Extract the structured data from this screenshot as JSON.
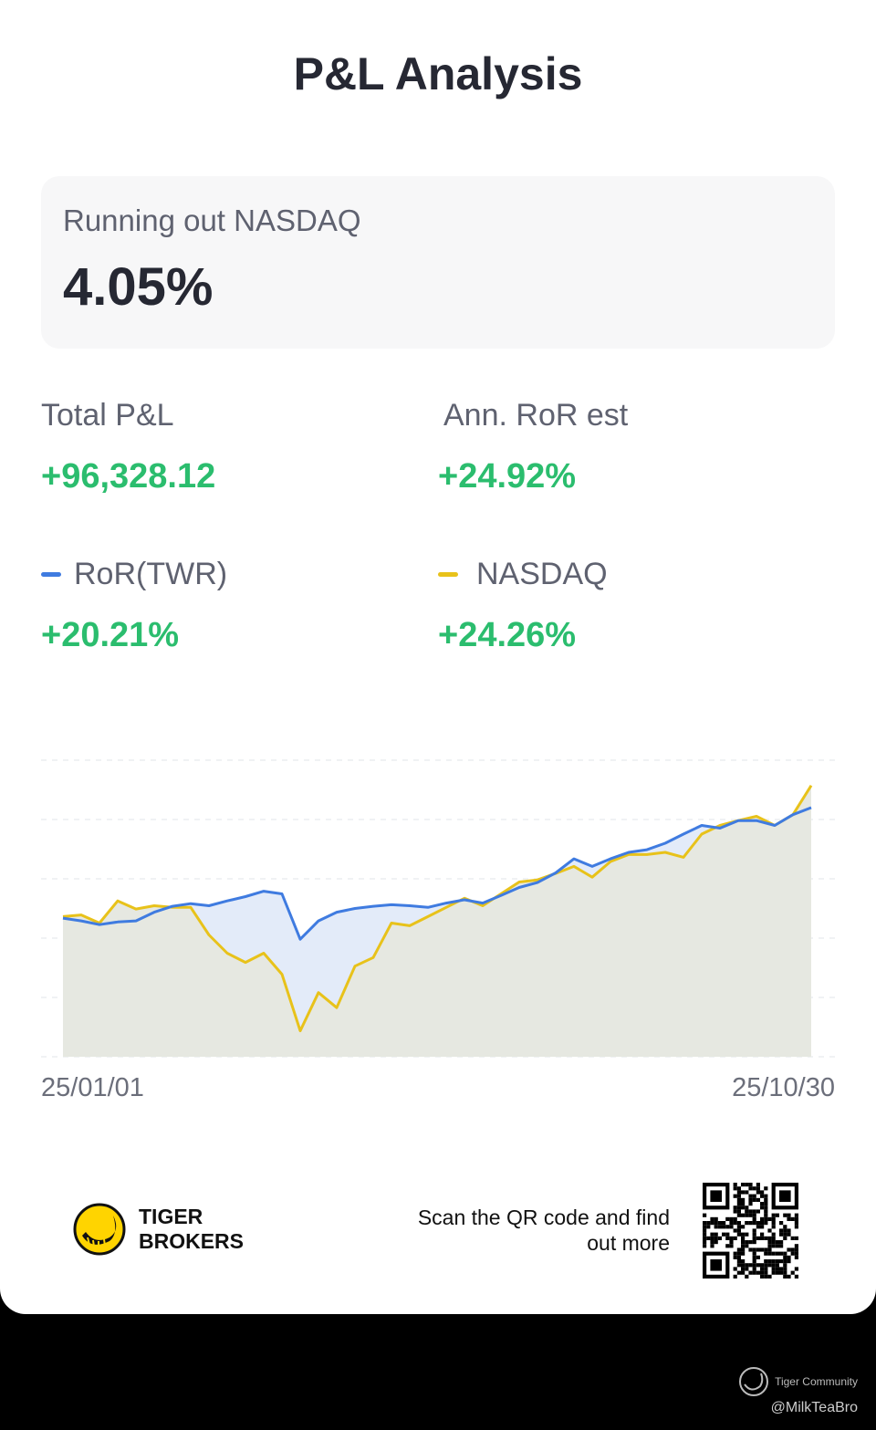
{
  "title": "P&L Analysis",
  "summary": {
    "label": "Running out NASDAQ",
    "value": "4.05%"
  },
  "stats": {
    "total_pl": {
      "label": "Total P&L",
      "value": "+96,328.12"
    },
    "ann_ror": {
      "label": "Ann. RoR est",
      "value": "+24.92%"
    },
    "ror_twr": {
      "label": "RoR(TWR)",
      "value": "+20.21%"
    },
    "nasdaq": {
      "label": "NASDAQ",
      "value": "+24.26%"
    }
  },
  "colors": {
    "ror": "#3f7be0",
    "nasdaq": "#e8c21a",
    "positive": "#2bbd6e"
  },
  "chart_data": {
    "type": "line",
    "x_start_label": "25/01/01",
    "x_end_label": "25/10/30",
    "ylim": [
      -26,
      29
    ],
    "grid": true,
    "series": [
      {
        "name": "RoR(TWR)",
        "color": "#3f7be0",
        "values": [
          -0.3,
          -0.8,
          -1.5,
          -1.0,
          -0.8,
          0.8,
          1.9,
          2.4,
          2.0,
          2.9,
          3.7,
          4.7,
          4.2,
          -4.2,
          -0.8,
          0.8,
          1.5,
          1.9,
          2.2,
          2.0,
          1.7,
          2.5,
          3.1,
          2.5,
          3.9,
          5.4,
          6.3,
          8.1,
          10.7,
          9.3,
          10.7,
          11.9,
          12.4,
          13.6,
          15.3,
          16.9,
          16.4,
          17.8,
          17.8,
          16.9,
          18.9,
          20.2
        ]
      },
      {
        "name": "NASDAQ",
        "color": "#e8c21a",
        "values": [
          0.0,
          0.3,
          -1.2,
          2.9,
          1.4,
          2.0,
          1.7,
          1.7,
          -3.4,
          -6.8,
          -8.5,
          -6.8,
          -10.7,
          -21.2,
          -14.1,
          -16.9,
          -9.2,
          -7.6,
          -1.2,
          -1.7,
          0.0,
          1.7,
          3.4,
          2.0,
          4.2,
          6.4,
          6.8,
          8.0,
          9.3,
          7.3,
          10.2,
          11.5,
          11.5,
          11.9,
          11.0,
          15.3,
          16.9,
          17.8,
          18.6,
          16.9,
          18.9,
          24.3
        ]
      }
    ]
  },
  "footer": {
    "brand_line1": "TIGER",
    "brand_line2": "BROKERS",
    "scan_text": "Scan the QR code and find out more",
    "watermark": "Tiger Community",
    "handle": "@MilkTeaBro"
  }
}
